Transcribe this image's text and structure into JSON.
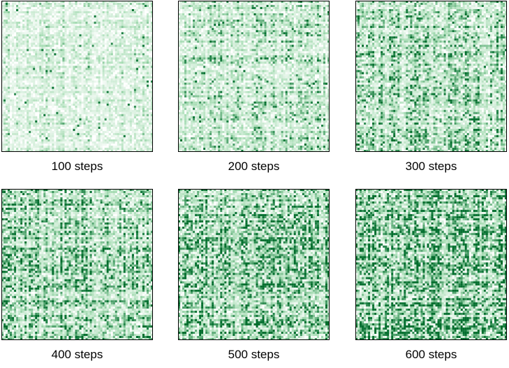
{
  "chart_data": [
    {
      "type": "heatmap",
      "caption": "100 steps",
      "grid_size": 72,
      "colormap": "white-to-green",
      "density": 0.25
    },
    {
      "type": "heatmap",
      "caption": "200 steps",
      "grid_size": 72,
      "colormap": "white-to-green",
      "density": 0.38
    },
    {
      "type": "heatmap",
      "caption": "300 steps",
      "grid_size": 72,
      "colormap": "white-to-green",
      "density": 0.48
    },
    {
      "type": "heatmap",
      "caption": "400 steps",
      "grid_size": 72,
      "colormap": "white-to-green",
      "density": 0.58
    },
    {
      "type": "heatmap",
      "caption": "500 steps",
      "grid_size": 72,
      "colormap": "white-to-green",
      "density": 0.64
    },
    {
      "type": "heatmap",
      "caption": "600 steps",
      "grid_size": 72,
      "colormap": "white-to-green",
      "density": 0.7
    }
  ],
  "colors": {
    "low": "#ffffff",
    "mid": "#a8ddb5",
    "high": "#006d2c",
    "frame": "#000000"
  }
}
